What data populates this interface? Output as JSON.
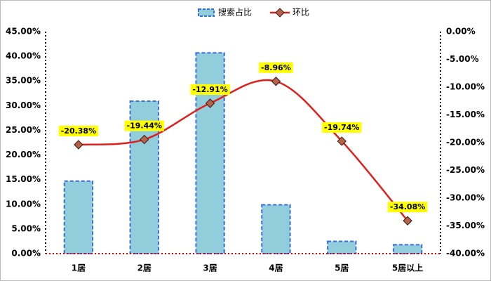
{
  "chart_data": {
    "type": "combo",
    "categories": [
      "1居",
      "2居",
      "3居",
      "4居",
      "5居",
      "5居以上"
    ],
    "series": [
      {
        "name": "搜索占比",
        "type": "bar",
        "color": "#92cddc",
        "edge_color": "#3a6fd8",
        "axis": "y",
        "values": [
          14.7,
          30.9,
          40.7,
          9.9,
          2.5,
          1.8
        ]
      },
      {
        "name": "环比",
        "type": "line",
        "color": "#e0201b",
        "marker_color": "#b5624a",
        "axis": "y2",
        "values": [
          -20.38,
          -19.44,
          -12.91,
          -8.96,
          -19.74,
          -34.08
        ],
        "value_labels": [
          "-20.38%",
          "-19.44%",
          "-12.91%",
          "-8.96%",
          "-19.74%",
          "-34.08%"
        ]
      }
    ],
    "ylim": [
      0,
      45
    ],
    "yticks": [
      {
        "value": 0,
        "label": "0.00%"
      },
      {
        "value": 5,
        "label": "5.00%"
      },
      {
        "value": 10,
        "label": "10.00%"
      },
      {
        "value": 15,
        "label": "15.00%"
      },
      {
        "value": 20,
        "label": "20.00%"
      },
      {
        "value": 25,
        "label": "25.00%"
      },
      {
        "value": 30,
        "label": "30.00%"
      },
      {
        "value": 35,
        "label": "35.00%"
      },
      {
        "value": 40,
        "label": "40.00%"
      },
      {
        "value": 45,
        "label": "45.00%"
      }
    ],
    "y2lim": [
      -40,
      0
    ],
    "y2ticks": [
      {
        "value": 0,
        "label": "0.00%"
      },
      {
        "value": -5,
        "label": "-5.00%"
      },
      {
        "value": -10,
        "label": "-10.00%"
      },
      {
        "value": -15,
        "label": "-15.00%"
      },
      {
        "value": -20,
        "label": "-20.00%"
      },
      {
        "value": -25,
        "label": "-25.00%"
      },
      {
        "value": -30,
        "label": "-30.00%"
      },
      {
        "value": -35,
        "label": "-35.00%"
      },
      {
        "value": -40,
        "label": "-40.00%"
      }
    ],
    "grid": false,
    "legend": "top"
  }
}
